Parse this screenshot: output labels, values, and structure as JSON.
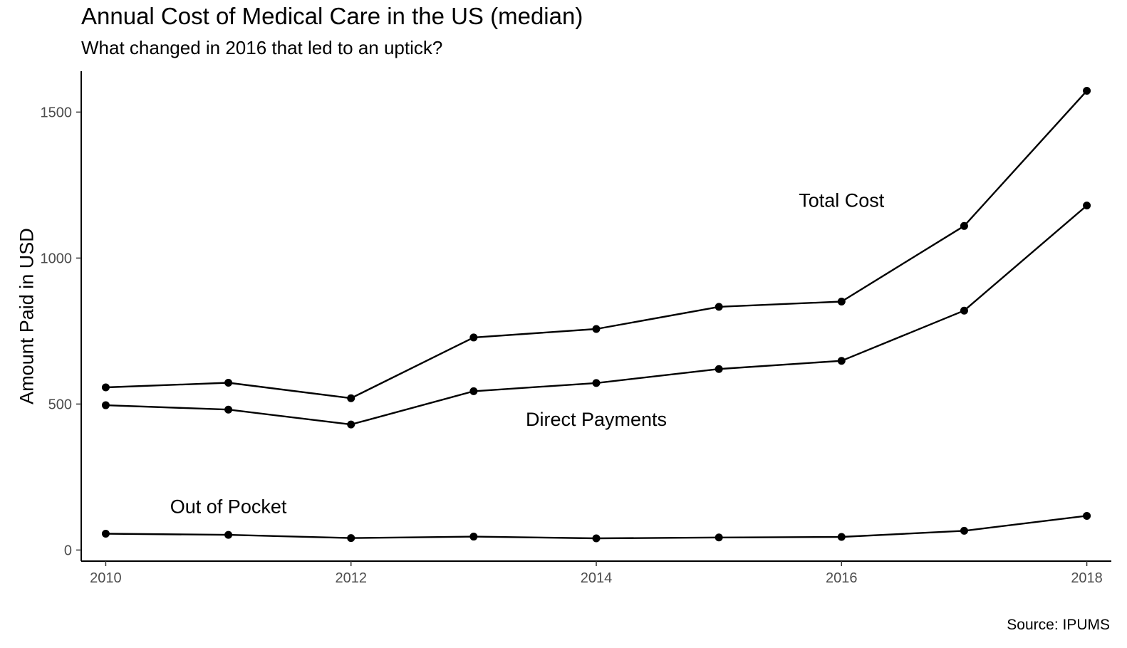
{
  "chart_data": {
    "type": "line",
    "title": "Annual Cost of Medical Care in the US (median)",
    "subtitle": "What changed in 2016 that led to an uptick?",
    "caption": "Source: IPUMS",
    "xlabel": "",
    "ylabel": "Amount Paid in USD",
    "xlim": [
      2009.8,
      2018.2
    ],
    "ylim": [
      -38,
      1640
    ],
    "x": [
      2010,
      2011,
      2012,
      2013,
      2014,
      2015,
      2016,
      2017,
      2018
    ],
    "x_ticks": [
      2010,
      2012,
      2014,
      2016,
      2018
    ],
    "y_ticks": [
      0,
      500,
      1000,
      1500
    ],
    "grid": false,
    "legend": "none",
    "line_color": "#000000",
    "series": [
      {
        "name": "Total Cost",
        "values": [
          557,
          573,
          520,
          728,
          757,
          833,
          851,
          1110,
          1573
        ]
      },
      {
        "name": "Direct Payments",
        "values": [
          496,
          481,
          430,
          544,
          572,
          620,
          648,
          820,
          1180
        ]
      },
      {
        "name": "Out of Pocket",
        "values": [
          56,
          52,
          41,
          46,
          40,
          43,
          45,
          66,
          117
        ]
      }
    ],
    "annotations": [
      {
        "text": "Total Cost",
        "x": 2016,
        "y": 1197
      },
      {
        "text": "Direct Payments",
        "x": 2014,
        "y": 447
      },
      {
        "text": "Out of Pocket",
        "x": 2011,
        "y": 148
      }
    ]
  }
}
